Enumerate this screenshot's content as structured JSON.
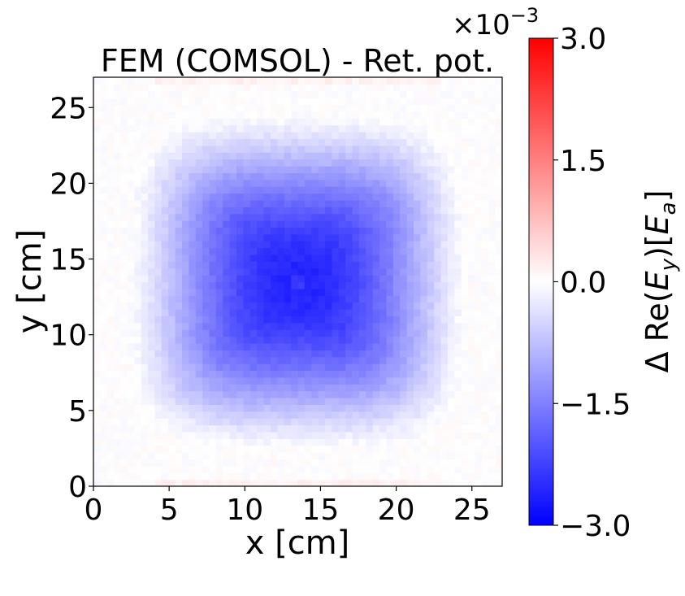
{
  "chart_data": {
    "type": "heatmap",
    "title": "FEM (COMSOL) - Ret. pot.",
    "xlabel": "x [cm]",
    "ylabel": "y [cm]",
    "xlim": [
      0,
      27
    ],
    "ylim": [
      0,
      27
    ],
    "x_ticks": [
      "0",
      "5",
      "10",
      "15",
      "20",
      "25"
    ],
    "x_tick_values": [
      0,
      5,
      10,
      15,
      20,
      25
    ],
    "y_ticks": [
      "0",
      "5",
      "10",
      "15",
      "20",
      "25"
    ],
    "y_tick_values": [
      0,
      5,
      10,
      15,
      20,
      25
    ],
    "colorbar": {
      "label": "Δ Re(E_y)[E_a]",
      "label_main": "Δ Re(",
      "label_sym": "E",
      "label_sub": "y",
      "label_mid": ")[",
      "label_sym2": "E",
      "label_sub2": "a",
      "label_end": "]",
      "range": [
        -3.0,
        3.0
      ],
      "ticks": [
        "3.0",
        "1.5",
        "0.0",
        "−1.5",
        "−3.0"
      ],
      "tick_values": [
        3.0,
        1.5,
        0.0,
        -1.5,
        -3.0
      ],
      "scale_base": "×10",
      "scale_exp": "−3",
      "colormap": "bwr",
      "colors": {
        "low": "#0000ff",
        "mid": "#ffffff",
        "high": "#ff0000"
      }
    },
    "field": {
      "description_of_values": "approximate difference field, ×10^-3",
      "center": [
        13.5,
        13.5
      ],
      "min_value": -2.6,
      "edge_value": 0.05,
      "grid": "on=false"
    }
  }
}
